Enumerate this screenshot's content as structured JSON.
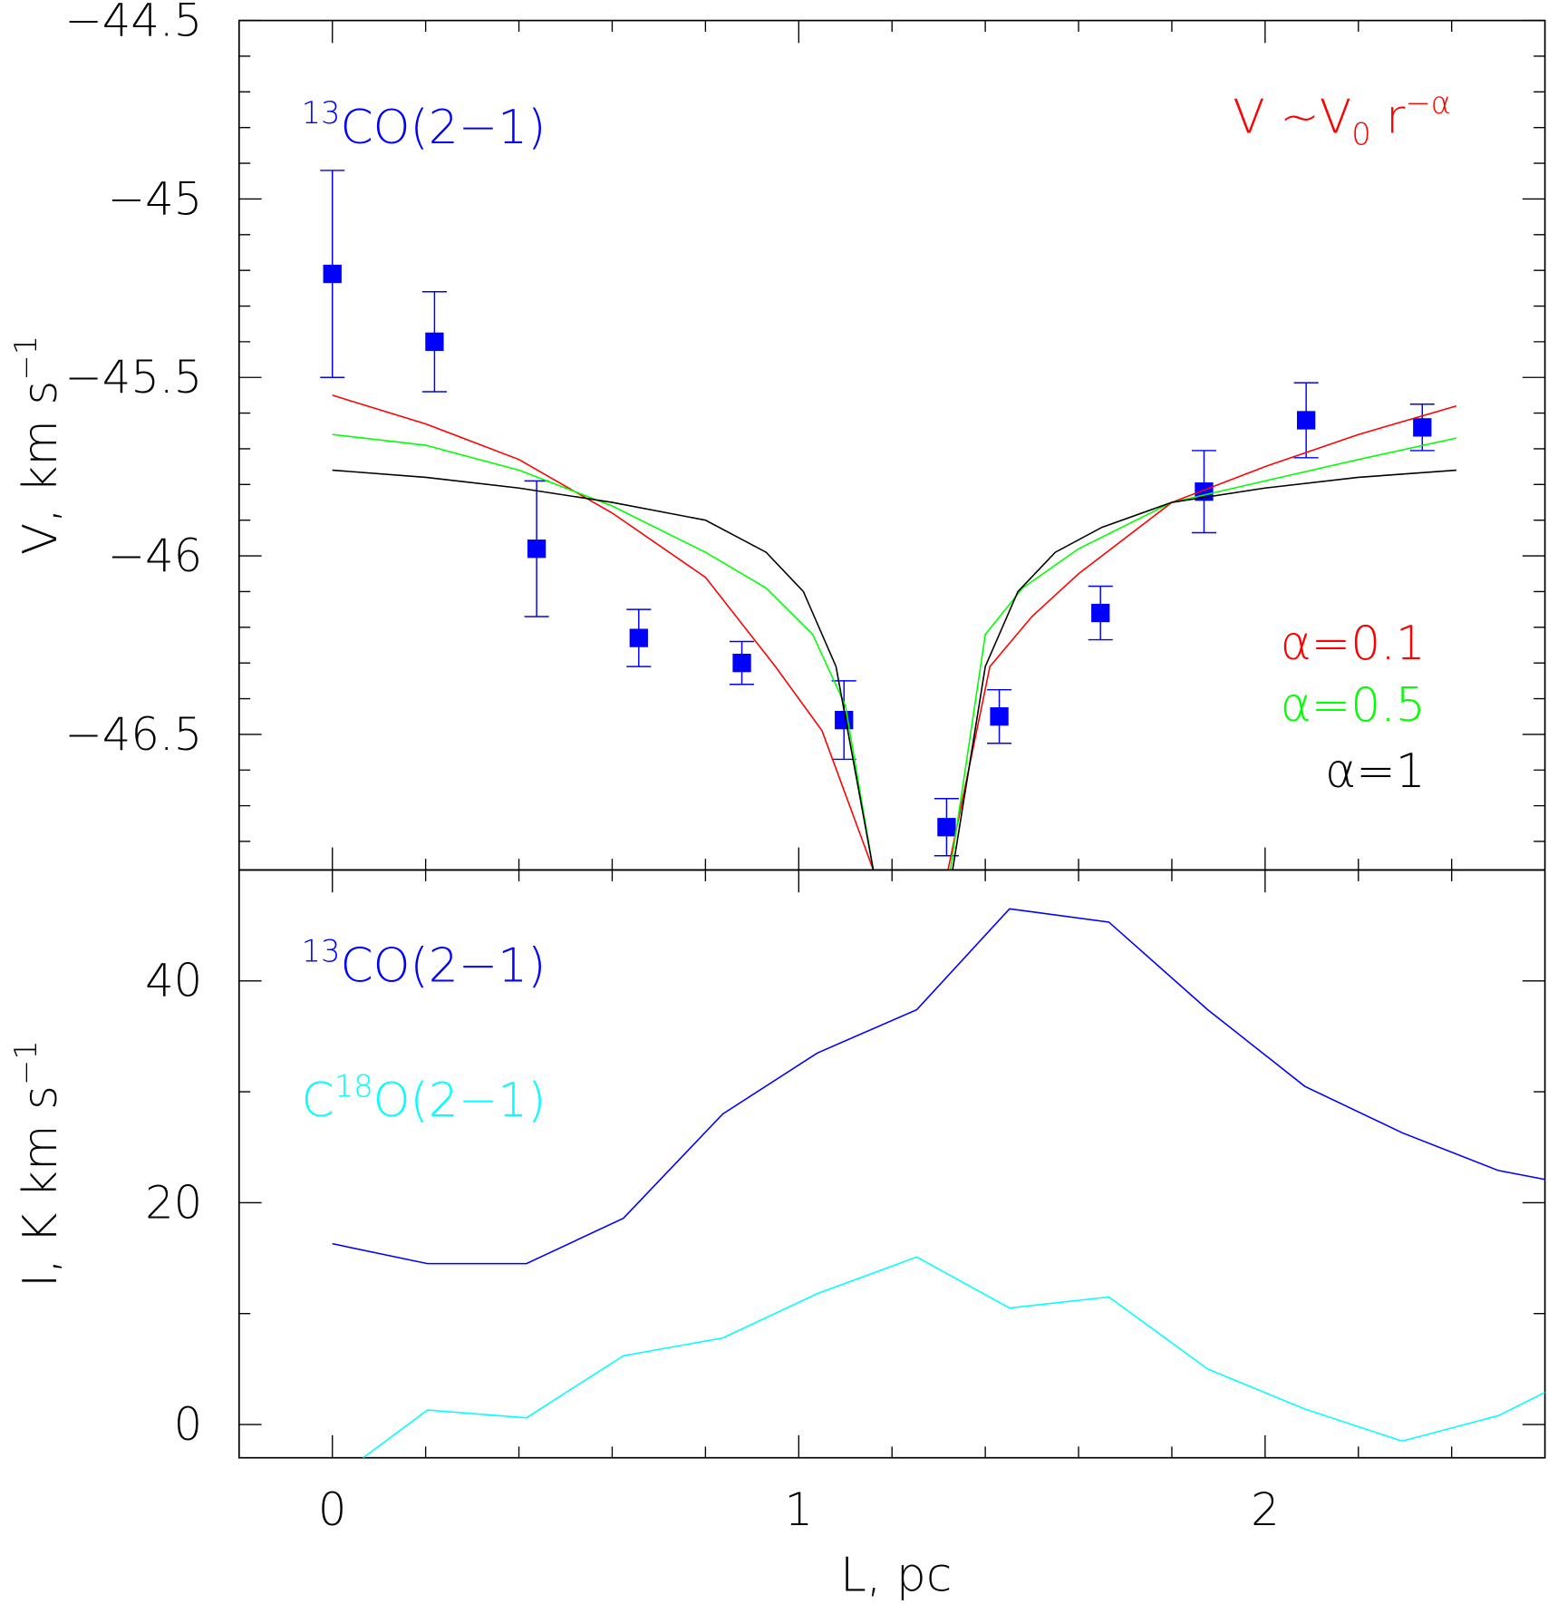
{
  "chart_data": [
    {
      "type": "scatter",
      "ylabel": {
        "segments": [
          {
            "text": "V, km s"
          },
          {
            "sup": "−1"
          }
        ]
      },
      "annotations": [
        {
          "segments": [
            {
              "text": "V ~V"
            },
            {
              "sub": "0"
            },
            {
              "text": " r"
            },
            {
              "sup": "−α"
            }
          ],
          "color": "#ff0000"
        }
      ],
      "xlim": [
        -0.2,
        2.6
      ],
      "ylim": [
        -46.88,
        -44.5
      ],
      "xticks": [
        0,
        1,
        2
      ],
      "xminorticks": [
        0.2,
        0.4,
        0.6,
        0.8,
        1.2,
        1.4,
        1.6,
        1.8,
        2.2,
        2.4
      ],
      "yticks": [
        {
          "value": -44.5,
          "label": "−44.5"
        },
        {
          "value": -45,
          "label": "−45"
        },
        {
          "value": -45.5,
          "label": "−45.5"
        },
        {
          "value": -46,
          "label": "−46"
        },
        {
          "value": -46.5,
          "label": "−46.5"
        }
      ],
      "yminorticks": [
        -44.6,
        -44.7,
        -44.8,
        -44.9,
        -45.1,
        -45.2,
        -45.3,
        -45.4,
        -45.6,
        -45.7,
        -45.8,
        -45.9,
        -46.1,
        -46.2,
        -46.3,
        -46.4,
        -46.6,
        -46.7,
        -46.8
      ],
      "series": [
        {
          "type": "scatter",
          "label": {
            "segments": [
              {
                "sup": "13"
              },
              {
                "text": "CO(2−1)"
              }
            ]
          },
          "color": "#0000ff",
          "x": [
            0,
            0.219,
            0.438,
            0.657,
            0.878,
            1.097,
            1.317,
            1.43,
            1.647,
            1.869,
            2.088,
            2.337
          ],
          "values": [
            -45.21,
            -45.4,
            -45.98,
            -46.23,
            -46.3,
            -46.46,
            -46.76,
            -46.45,
            -46.16,
            -45.82,
            -45.62,
            -45.64
          ],
          "errors": [
            0.29,
            0.14,
            0.19,
            0.08,
            0.06,
            0.11,
            0.08,
            0.075,
            0.075,
            0.115,
            0.105,
            0.065
          ]
        },
        {
          "type": "line",
          "label": {
            "segments": [
              {
                "text": "α=0.1"
              }
            ]
          },
          "color": "#ff0000",
          "x": [
            0,
            0.2,
            0.4,
            0.6,
            0.8,
            0.95,
            1.05,
            1.16,
            null,
            1.32,
            1.41,
            1.5,
            1.6,
            1.8,
            2.0,
            2.2,
            2.41
          ],
          "values": [
            -45.55,
            -45.63,
            -45.73,
            -45.88,
            -46.06,
            -46.31,
            -46.49,
            -46.88,
            null,
            -46.88,
            -46.31,
            -46.17,
            -46.05,
            -45.85,
            -45.75,
            -45.66,
            -45.58
          ]
        },
        {
          "type": "line",
          "label": {
            "segments": [
              {
                "text": "α=0.5"
              }
            ]
          },
          "color": "#00ff00",
          "x": [
            0,
            0.2,
            0.4,
            0.6,
            0.8,
            0.93,
            1.03,
            1.1,
            1.16,
            null,
            1.325,
            1.4,
            1.48,
            1.6,
            1.8,
            2.0,
            2.2,
            2.41
          ],
          "values": [
            -45.66,
            -45.69,
            -45.76,
            -45.86,
            -45.99,
            -46.09,
            -46.22,
            -46.42,
            -46.88,
            null,
            -46.88,
            -46.22,
            -46.09,
            -45.98,
            -45.85,
            -45.79,
            -45.73,
            -45.67
          ]
        },
        {
          "type": "line",
          "label": {
            "segments": [
              {
                "text": "α=1"
              }
            ]
          },
          "color": "#000000",
          "x": [
            0,
            0.2,
            0.4,
            0.6,
            0.8,
            0.93,
            1.01,
            1.08,
            1.16,
            null,
            1.33,
            1.4,
            1.47,
            1.55,
            1.65,
            1.8,
            2.0,
            2.2,
            2.41
          ],
          "values": [
            -45.76,
            -45.78,
            -45.81,
            -45.85,
            -45.9,
            -45.99,
            -46.1,
            -46.31,
            -46.88,
            null,
            -46.88,
            -46.31,
            -46.1,
            -45.99,
            -45.92,
            -45.85,
            -45.81,
            -45.78,
            -45.76
          ]
        }
      ]
    },
    {
      "type": "line",
      "ylabel": {
        "segments": [
          {
            "text": "I, K km s"
          },
          {
            "sup": "−1"
          }
        ]
      },
      "xlabel": "L, pc",
      "xlim": [
        -0.2,
        2.6
      ],
      "ylim": [
        -3,
        50
      ],
      "xticks": [
        0,
        1,
        2
      ],
      "xminorticks": [
        0.2,
        0.4,
        0.6,
        0.8,
        1.2,
        1.4,
        1.6,
        1.8,
        2.2,
        2.4
      ],
      "yticks": [
        0,
        20,
        40
      ],
      "yminorticks": [
        10,
        30
      ],
      "series": [
        {
          "label": {
            "segments": [
              {
                "sup": "13"
              },
              {
                "text": "CO(2−1)"
              }
            ]
          },
          "color": "#0000ff",
          "x": [
            0,
            0.204,
            0.416,
            0.624,
            0.837,
            1.04,
            1.253,
            1.452,
            1.665,
            1.877,
            2.085,
            2.294,
            2.5,
            2.6
          ],
          "values": [
            16.3,
            14.5,
            14.5,
            18.6,
            28.0,
            33.5,
            37.4,
            46.5,
            45.3,
            37.4,
            30.5,
            26.3,
            22.9,
            22.1
          ]
        },
        {
          "label": {
            "segments": [
              {
                "text": "C"
              },
              {
                "sup": "18"
              },
              {
                "text": "O(2−1)"
              }
            ]
          },
          "color": "#00ffff",
          "x": [
            0.066,
            0.204,
            0.416,
            0.624,
            0.837,
            1.04,
            1.253,
            1.452,
            1.665,
            1.877,
            2.085,
            2.294,
            2.5,
            2.6
          ],
          "values": [
            -3,
            1.3,
            0.6,
            6.2,
            7.8,
            11.8,
            15.1,
            10.5,
            11.5,
            5.0,
            1.4,
            -1.5,
            0.8,
            2.9
          ]
        }
      ]
    }
  ]
}
